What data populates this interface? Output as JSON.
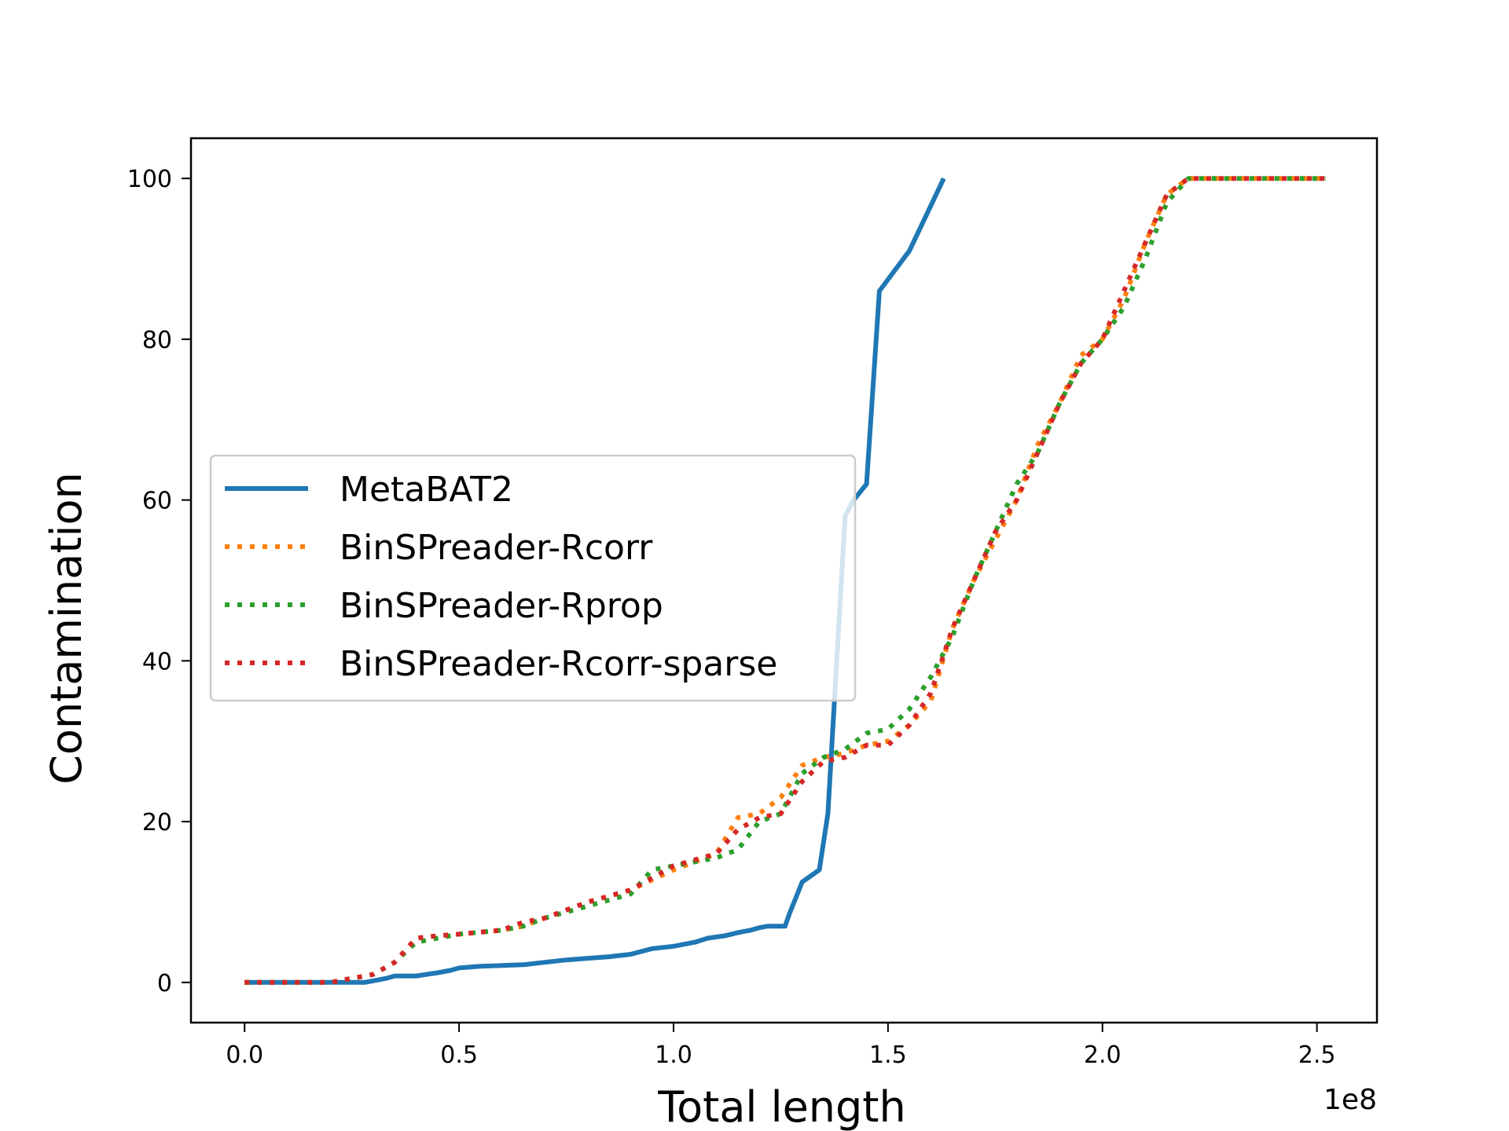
{
  "chart_data": {
    "type": "line",
    "xlabel": "Total length",
    "ylabel": "Contamination",
    "x_offset_label": "1e8",
    "xlim": [
      -0.125,
      2.64
    ],
    "ylim": [
      -5,
      105
    ],
    "x_ticks": [
      0.0,
      0.5,
      1.0,
      1.5,
      2.0,
      2.5
    ],
    "x_tick_labels": [
      "0.0",
      "0.5",
      "1.0",
      "1.5",
      "2.0",
      "2.5"
    ],
    "y_ticks": [
      0,
      20,
      40,
      60,
      80,
      100
    ],
    "y_tick_labels": [
      "0",
      "20",
      "40",
      "60",
      "80",
      "100"
    ],
    "grid": false,
    "legend_position": "center-left",
    "series": [
      {
        "name": "MetaBAT2",
        "color": "#1f77b4",
        "style": "solid",
        "x": [
          0,
          0.1,
          0.2,
          0.28,
          0.33,
          0.35,
          0.4,
          0.45,
          0.48,
          0.5,
          0.55,
          0.6,
          0.65,
          0.7,
          0.75,
          0.8,
          0.85,
          0.9,
          0.95,
          1.0,
          1.05,
          1.08,
          1.12,
          1.15,
          1.18,
          1.2,
          1.22,
          1.26,
          1.27,
          1.3,
          1.34,
          1.36,
          1.4,
          1.42,
          1.45,
          1.48,
          1.55,
          1.63
        ],
        "y": [
          0,
          0,
          0,
          0,
          0.5,
          0.8,
          0.8,
          1.2,
          1.5,
          1.8,
          2.0,
          2.1,
          2.2,
          2.5,
          2.8,
          3.0,
          3.2,
          3.5,
          4.2,
          4.5,
          5.0,
          5.5,
          5.8,
          6.2,
          6.5,
          6.8,
          7.0,
          7.0,
          8.5,
          12.5,
          14.0,
          21.0,
          58.0,
          60.0,
          62.0,
          86.0,
          91.0,
          100.0
        ]
      },
      {
        "name": "BinSPreader-Rcorr",
        "color": "#ff7f0e",
        "style": "dotted",
        "x": [
          0,
          0.1,
          0.2,
          0.3,
          0.35,
          0.4,
          0.45,
          0.5,
          0.6,
          0.65,
          0.7,
          0.8,
          0.9,
          1.0,
          1.1,
          1.15,
          1.2,
          1.25,
          1.3,
          1.35,
          1.4,
          1.45,
          1.5,
          1.55,
          1.6,
          1.65,
          1.7,
          1.75,
          1.8,
          1.85,
          1.9,
          1.95,
          2.0,
          2.05,
          2.1,
          2.15,
          2.2,
          2.3,
          2.4,
          2.52
        ],
        "y": [
          0,
          0,
          0,
          1.0,
          2.5,
          5.5,
          5.8,
          6.0,
          6.5,
          7.0,
          8.0,
          10.0,
          11.5,
          14.0,
          16.0,
          20.5,
          21.0,
          23.0,
          27.0,
          28.0,
          28.5,
          29.5,
          30.0,
          32.0,
          35.0,
          44.0,
          50.0,
          55.0,
          60.0,
          67.0,
          72.0,
          78.0,
          80.0,
          85.0,
          92.0,
          98.0,
          100,
          100,
          100,
          100
        ]
      },
      {
        "name": "BinSPreader-Rprop",
        "color": "#2ca02c",
        "style": "dotted",
        "x": [
          0,
          0.1,
          0.2,
          0.3,
          0.35,
          0.4,
          0.45,
          0.5,
          0.6,
          0.65,
          0.7,
          0.8,
          0.9,
          0.95,
          1.0,
          1.1,
          1.15,
          1.2,
          1.25,
          1.3,
          1.35,
          1.4,
          1.45,
          1.5,
          1.55,
          1.6,
          1.65,
          1.7,
          1.75,
          1.8,
          1.85,
          1.9,
          1.95,
          2.0,
          2.05,
          2.1,
          2.15,
          2.2,
          2.3,
          2.4,
          2.52
        ],
        "y": [
          0,
          0,
          0,
          1.0,
          2.5,
          5.0,
          5.5,
          6.0,
          6.5,
          7.0,
          8.0,
          9.5,
          11.0,
          14.0,
          14.5,
          15.5,
          16.5,
          20.0,
          21.0,
          26.0,
          28.0,
          29.0,
          31.0,
          31.5,
          34.0,
          38.0,
          43.0,
          50.0,
          56.0,
          62.0,
          66.0,
          72.0,
          77.0,
          80.0,
          84.0,
          90.0,
          97.0,
          100,
          100,
          100,
          100
        ]
      },
      {
        "name": "BinSPreader-Rcorr-sparse",
        "color": "#d62728",
        "style": "dotted",
        "x": [
          0,
          0.1,
          0.2,
          0.3,
          0.35,
          0.4,
          0.45,
          0.5,
          0.6,
          0.65,
          0.7,
          0.8,
          0.9,
          1.0,
          1.1,
          1.15,
          1.2,
          1.25,
          1.3,
          1.35,
          1.4,
          1.45,
          1.5,
          1.55,
          1.6,
          1.65,
          1.7,
          1.75,
          1.8,
          1.85,
          1.9,
          1.95,
          2.0,
          2.05,
          2.1,
          2.15,
          2.2,
          2.3,
          2.4,
          2.52
        ],
        "y": [
          0,
          0,
          0,
          1.0,
          2.5,
          5.5,
          5.8,
          6.0,
          6.5,
          7.5,
          8.0,
          10.0,
          11.5,
          14.5,
          16.0,
          19.0,
          20.5,
          21.0,
          25.0,
          27.5,
          28.0,
          29.5,
          29.5,
          32.0,
          36.0,
          44.0,
          50.0,
          56.0,
          60.0,
          66.0,
          72.0,
          77.0,
          80.0,
          86.0,
          92.0,
          98.0,
          100,
          100,
          100,
          100
        ]
      }
    ]
  }
}
